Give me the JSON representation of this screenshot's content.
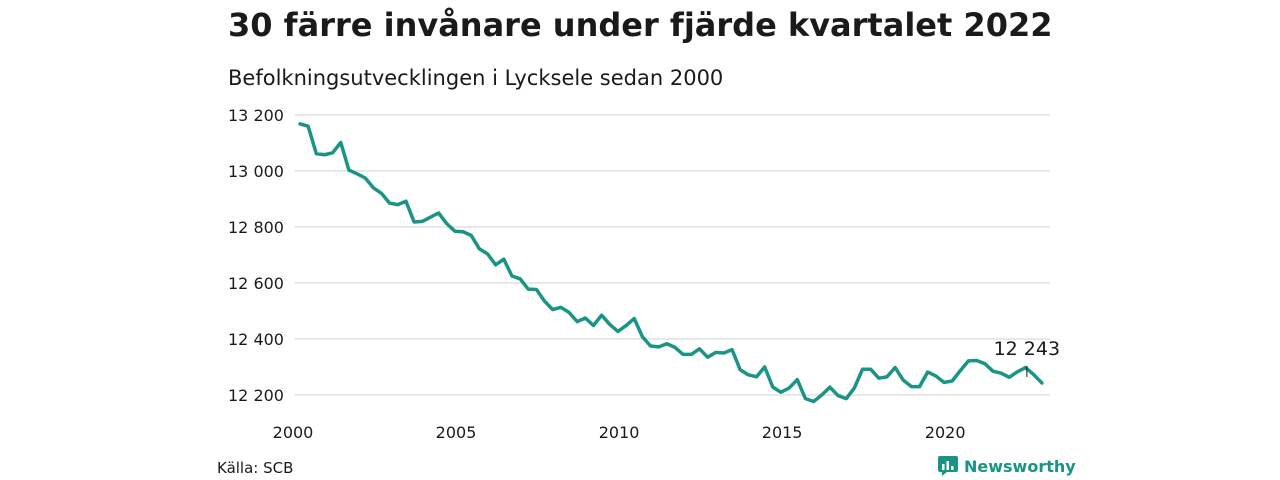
{
  "title": "30 färre invånare under fjärde kvartalet 2022",
  "subtitle": "Befolkningsutvecklingen i Lycksele sedan 2000",
  "source": "Källa: SCB",
  "brand": {
    "name": "Newsworthy"
  },
  "colors": {
    "line": "#1a9485",
    "grid": "#d9d9d9",
    "text": "#1a1a1a",
    "brand": "#1a9485"
  },
  "chart_data": {
    "type": "line",
    "title": "Befolkningsutvecklingen i Lycksele sedan 2000",
    "xlabel": "",
    "ylabel": "",
    "xlim": [
      2000,
      2023
    ],
    "ylim": [
      12150,
      13200
    ],
    "grid": true,
    "legend": "none",
    "x_ticks": [
      2000,
      2005,
      2010,
      2015,
      2020
    ],
    "x_tick_labels": [
      "2000",
      "2005",
      "2010",
      "2015",
      "2020"
    ],
    "y_ticks": [
      12200,
      12400,
      12600,
      12800,
      13000,
      13200
    ],
    "y_tick_labels": [
      "12 200",
      "12 400",
      "12 600",
      "12 800",
      "13 000",
      "13 200"
    ],
    "annotation": {
      "text": "12 243",
      "x": 2022.75,
      "y": 12243
    },
    "series": [
      {
        "x": [
          2000.0,
          2000.25,
          2000.5,
          2000.75,
          2001.0,
          2001.25,
          2001.5,
          2001.75,
          2002.0,
          2002.25,
          2002.5,
          2002.75,
          2003.0,
          2003.25,
          2003.5,
          2003.75,
          2004.0,
          2004.25,
          2004.5,
          2004.75,
          2005.0,
          2005.25,
          2005.5,
          2005.75,
          2006.0,
          2006.25,
          2006.5,
          2006.75,
          2007.0,
          2007.25,
          2007.5,
          2007.75,
          2008.0,
          2008.25,
          2008.5,
          2008.75,
          2009.0,
          2009.25,
          2009.5,
          2009.75,
          2010.0,
          2010.25,
          2010.5,
          2010.75,
          2011.0,
          2011.25,
          2011.5,
          2011.75,
          2012.0,
          2012.25,
          2012.5,
          2012.75,
          2013.0,
          2013.25,
          2013.5,
          2013.75,
          2014.0,
          2014.25,
          2014.5,
          2014.75,
          2015.0,
          2015.25,
          2015.5,
          2015.75,
          2016.0,
          2016.25,
          2016.5,
          2016.75,
          2017.0,
          2017.25,
          2017.5,
          2017.75,
          2018.0,
          2018.25,
          2018.5,
          2018.75,
          2019.0,
          2019.25,
          2019.5,
          2019.75,
          2020.0,
          2020.25,
          2020.5,
          2020.75,
          2021.0,
          2021.25,
          2021.5,
          2021.75,
          2022.0,
          2022.25,
          2022.5,
          2022.75
        ],
        "values": [
          13168,
          13160,
          13062,
          13058,
          13065,
          13102,
          13003,
          12990,
          12975,
          12940,
          12920,
          12885,
          12880,
          12892,
          12818,
          12820,
          12835,
          12850,
          12812,
          12785,
          12783,
          12770,
          12722,
          12704,
          12665,
          12685,
          12625,
          12615,
          12578,
          12577,
          12535,
          12505,
          12513,
          12495,
          12462,
          12475,
          12448,
          12485,
          12452,
          12427,
          12448,
          12473,
          12408,
          12375,
          12372,
          12383,
          12370,
          12345,
          12345,
          12365,
          12335,
          12352,
          12350,
          12362,
          12290,
          12272,
          12265,
          12300,
          12228,
          12210,
          12225,
          12255,
          12187,
          12177,
          12200,
          12228,
          12198,
          12187,
          12225,
          12292,
          12292,
          12260,
          12265,
          12298,
          12253,
          12230,
          12230,
          12282,
          12268,
          12245,
          12250,
          12287,
          12322,
          12323,
          12312,
          12285,
          12278,
          12263,
          12283,
          12298,
          12273,
          12243
        ]
      }
    ]
  }
}
